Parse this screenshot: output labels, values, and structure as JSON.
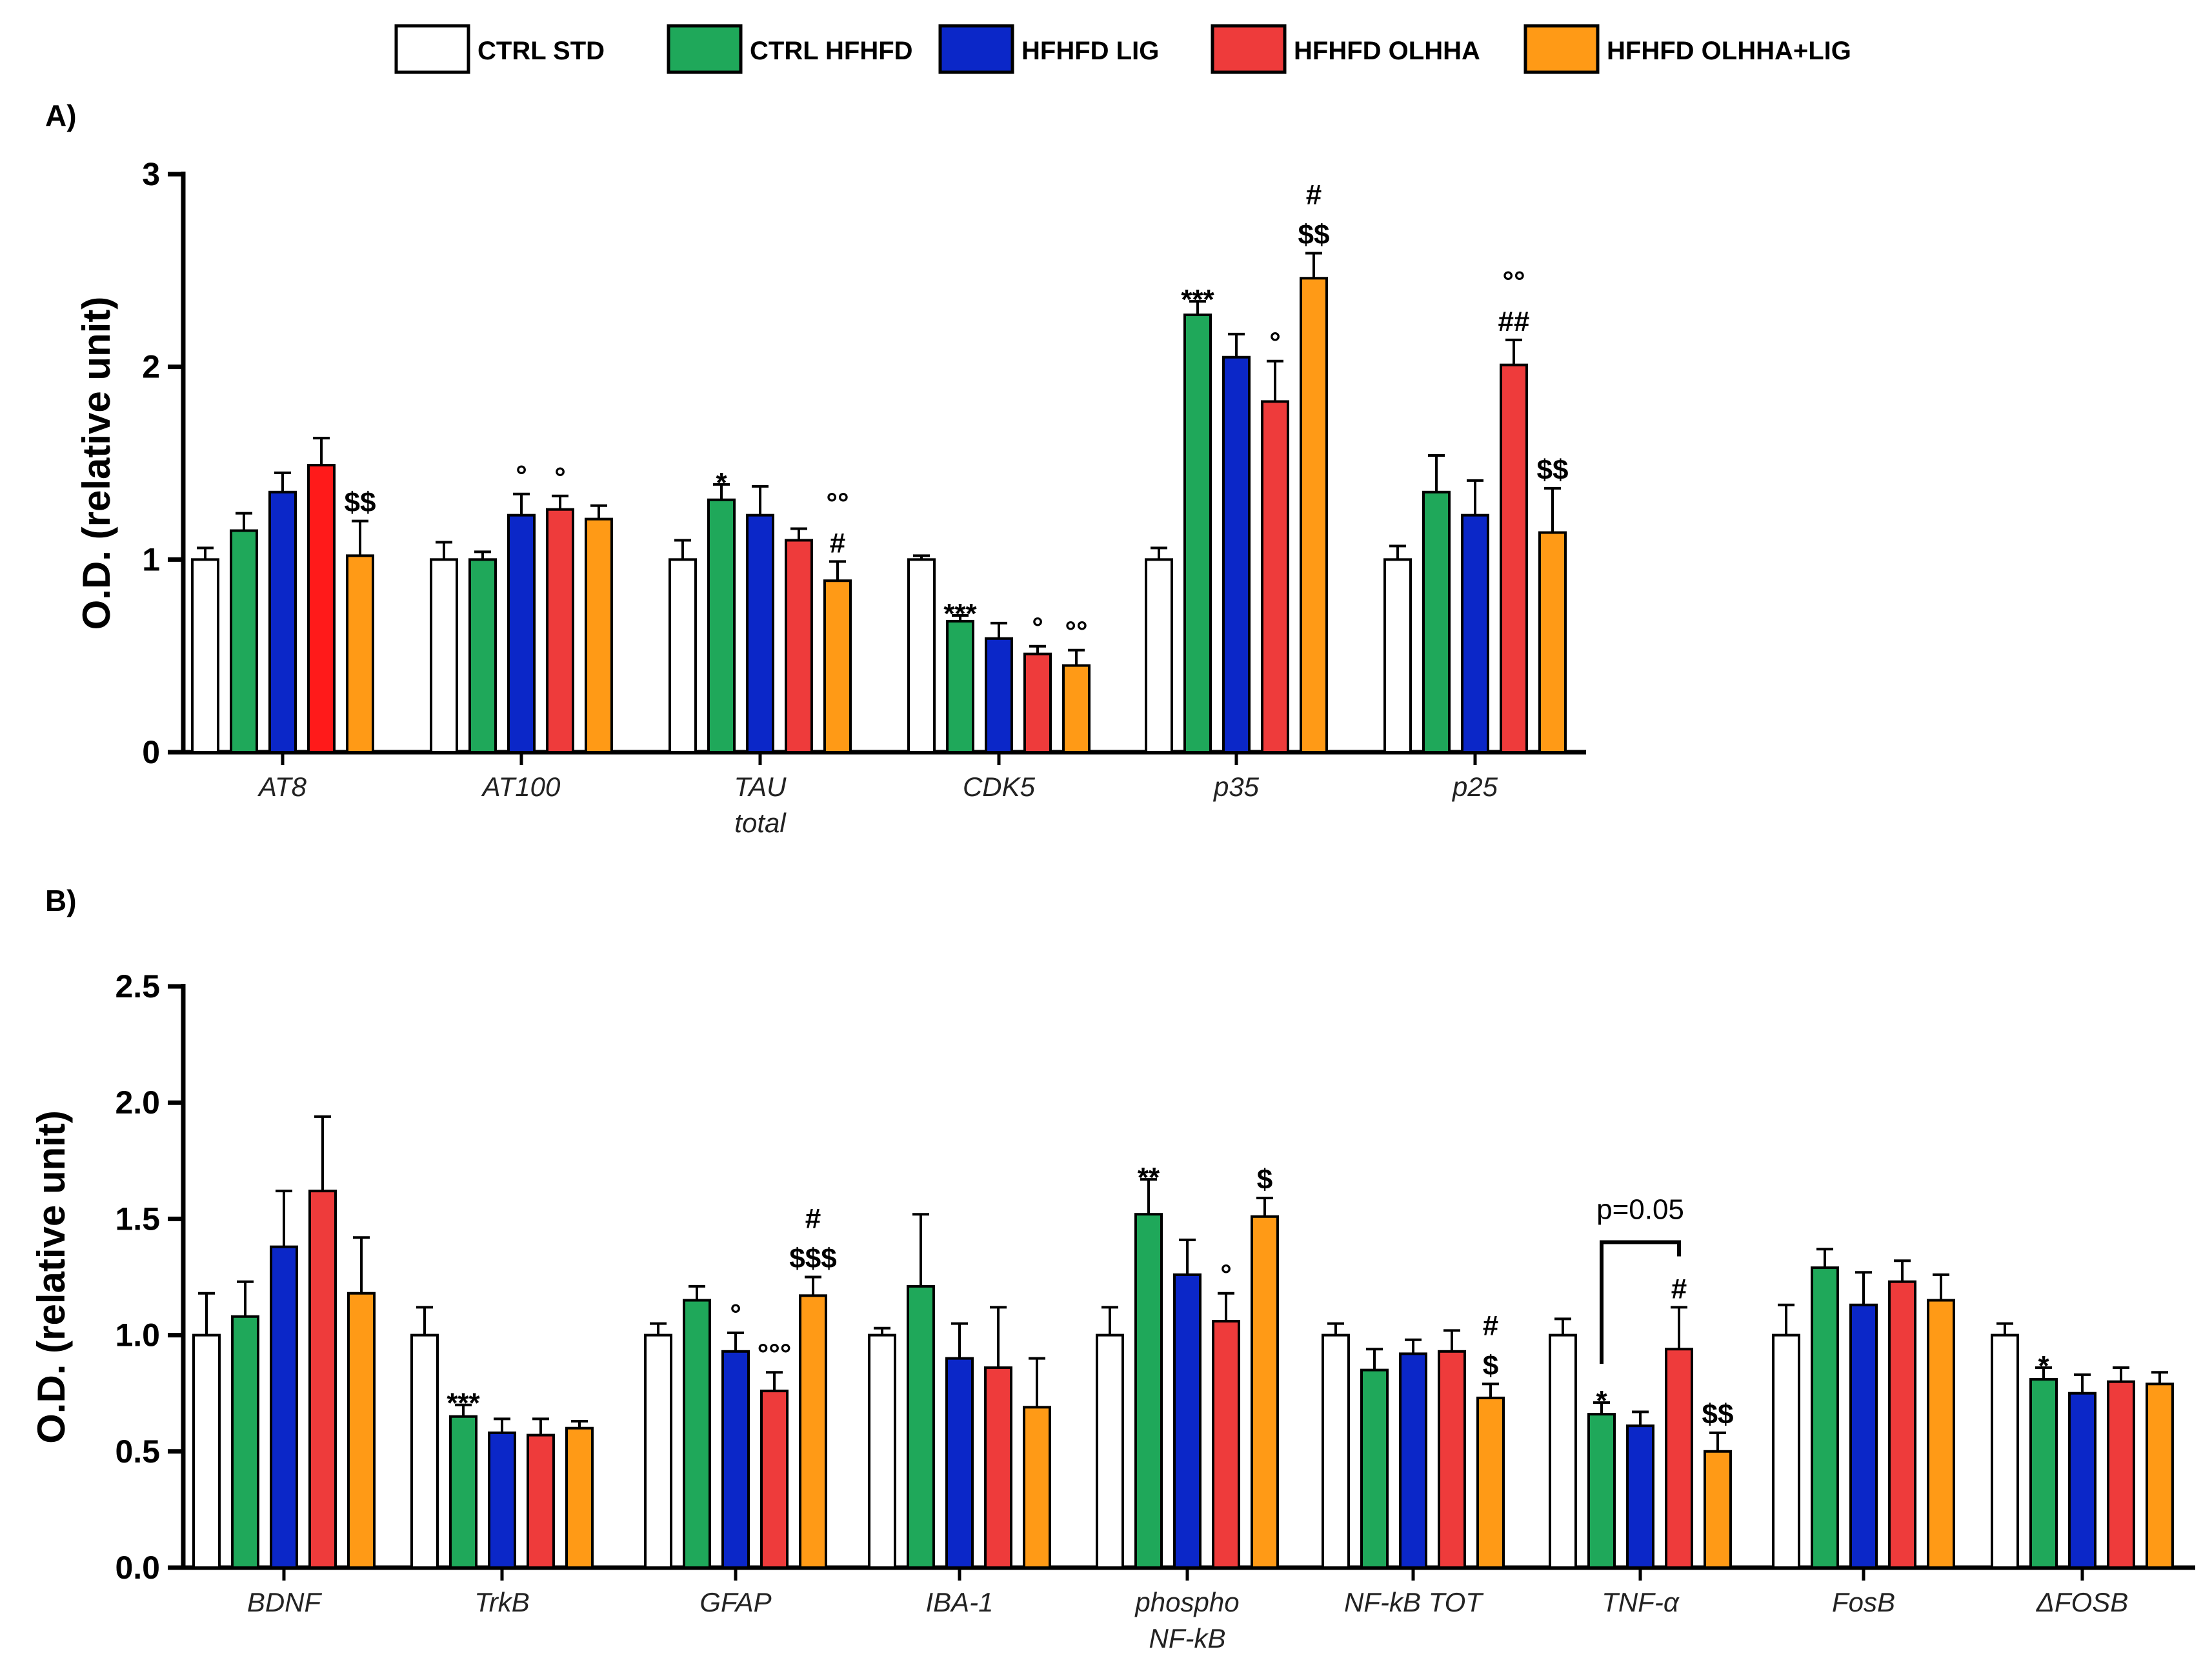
{
  "colors": {
    "CTRL STD": "#ffffff",
    "CTRL HFHFD": "#1fa85a",
    "HFHFD LIG": "#0b27c8",
    "HFHFD OLHHA": "#ee3b3b",
    "HFHFD OLHHA+LIG": "#ff9a16",
    "AT8_OLHHA": "#ff1a1a",
    "stroke": "#000000"
  },
  "legend": [
    "CTRL STD",
    "CTRL HFHFD",
    "HFHFD LIG",
    "HFHFD OLHHA",
    "HFHFD OLHHA+LIG"
  ],
  "chart_data": [
    {
      "type": "bar",
      "panel_label": "A)",
      "ylabel": "O.D. (relative unit)",
      "ylim": [
        0,
        3
      ],
      "yticks": [
        "0",
        "1",
        "2",
        "3"
      ],
      "ytick_values": [
        0,
        1,
        2,
        3
      ],
      "categories": [
        "AT8",
        "AT100",
        "TAU\ntotal",
        "CDK5",
        "p35",
        "p25"
      ],
      "series": [
        {
          "name": "CTRL STD",
          "values": [
            1.0,
            1.0,
            1.0,
            1.0,
            1.0,
            1.0
          ],
          "errors": [
            0.06,
            0.09,
            0.1,
            0.02,
            0.06,
            0.07
          ]
        },
        {
          "name": "CTRL HFHFD",
          "values": [
            1.15,
            1.0,
            1.31,
            0.68,
            2.27,
            1.35
          ],
          "errors": [
            0.09,
            0.04,
            0.08,
            0.03,
            0.07,
            0.19
          ]
        },
        {
          "name": "HFHFD LIG",
          "values": [
            1.35,
            1.23,
            1.23,
            0.59,
            2.05,
            1.23
          ],
          "errors": [
            0.1,
            0.11,
            0.15,
            0.08,
            0.12,
            0.18
          ]
        },
        {
          "name": "HFHFD OLHHA",
          "values": [
            1.49,
            1.26,
            1.1,
            0.51,
            1.82,
            2.01
          ],
          "errors": [
            0.14,
            0.07,
            0.06,
            0.04,
            0.21,
            0.13
          ]
        },
        {
          "name": "HFHFD OLHHA+LIG",
          "values": [
            1.02,
            1.21,
            0.89,
            0.45,
            2.46,
            1.14
          ],
          "errors": [
            0.18,
            0.07,
            0.1,
            0.08,
            0.13,
            0.23
          ]
        }
      ],
      "annotations": [
        {
          "cat": 0,
          "series": 4,
          "text": "$$"
        },
        {
          "cat": 1,
          "series": 2,
          "text": "°"
        },
        {
          "cat": 1,
          "series": 3,
          "text": "°"
        },
        {
          "cat": 2,
          "series": 1,
          "text": "*"
        },
        {
          "cat": 2,
          "series": 4,
          "text": "#"
        },
        {
          "cat": 2,
          "series": 4,
          "text": "°°"
        },
        {
          "cat": 3,
          "series": 1,
          "text": "***"
        },
        {
          "cat": 3,
          "series": 3,
          "text": "°"
        },
        {
          "cat": 3,
          "series": 4,
          "text": "°°"
        },
        {
          "cat": 4,
          "series": 1,
          "text": "***"
        },
        {
          "cat": 4,
          "series": 3,
          "text": "°"
        },
        {
          "cat": 4,
          "series": 4,
          "text": "$$"
        },
        {
          "cat": 4,
          "series": 4,
          "text": "#"
        },
        {
          "cat": 5,
          "series": 3,
          "text": "##"
        },
        {
          "cat": 5,
          "series": 3,
          "text": "°°"
        },
        {
          "cat": 5,
          "series": 4,
          "text": "$$"
        }
      ]
    },
    {
      "type": "bar",
      "panel_label": "B)",
      "ylabel": "O.D. (relative unit)",
      "ylim": [
        0,
        2.5
      ],
      "yticks": [
        "0.0",
        "0.5",
        "1.0",
        "1.5",
        "2.0",
        "2.5"
      ],
      "ytick_values": [
        0,
        0.5,
        1.0,
        1.5,
        2.0,
        2.5
      ],
      "categories": [
        "BDNF",
        "TrkB",
        "GFAP",
        "IBA-1",
        "phospho\nNF-kB",
        "NF-kB TOT",
        "TNF-α",
        "FosB",
        "ΔFOSB"
      ],
      "series": [
        {
          "name": "CTRL STD",
          "values": [
            1.0,
            1.0,
            1.0,
            1.0,
            1.0,
            1.0,
            1.0,
            1.0,
            1.0
          ],
          "errors": [
            0.18,
            0.12,
            0.05,
            0.03,
            0.12,
            0.05,
            0.07,
            0.13,
            0.05
          ]
        },
        {
          "name": "CTRL HFHFD",
          "values": [
            1.08,
            0.65,
            1.15,
            1.21,
            1.52,
            0.85,
            0.66,
            1.29,
            0.81
          ],
          "errors": [
            0.15,
            0.05,
            0.06,
            0.31,
            0.15,
            0.09,
            0.05,
            0.08,
            0.05
          ]
        },
        {
          "name": "HFHFD LIG",
          "values": [
            1.38,
            0.58,
            0.93,
            0.9,
            1.26,
            0.92,
            0.61,
            1.13,
            0.75
          ],
          "errors": [
            0.24,
            0.06,
            0.08,
            0.15,
            0.15,
            0.06,
            0.06,
            0.14,
            0.08
          ]
        },
        {
          "name": "HFHFD OLHHA",
          "values": [
            1.62,
            0.57,
            0.76,
            0.86,
            1.06,
            0.93,
            0.94,
            1.23,
            0.8
          ],
          "errors": [
            0.32,
            0.07,
            0.08,
            0.26,
            0.12,
            0.09,
            0.18,
            0.09,
            0.06
          ]
        },
        {
          "name": "HFHFD OLHHA+LIG",
          "values": [
            1.18,
            0.6,
            1.17,
            0.69,
            1.51,
            0.73,
            0.5,
            1.15,
            0.79
          ],
          "errors": [
            0.24,
            0.03,
            0.08,
            0.21,
            0.08,
            0.06,
            0.08,
            0.11,
            0.05
          ]
        }
      ],
      "annotations": [
        {
          "cat": 1,
          "series": 1,
          "text": "***"
        },
        {
          "cat": 2,
          "series": 2,
          "text": "°"
        },
        {
          "cat": 2,
          "series": 3,
          "text": "°°°"
        },
        {
          "cat": 2,
          "series": 4,
          "text": "$$$"
        },
        {
          "cat": 2,
          "series": 4,
          "text": "#"
        },
        {
          "cat": 4,
          "series": 1,
          "text": "**"
        },
        {
          "cat": 4,
          "series": 3,
          "text": "°"
        },
        {
          "cat": 4,
          "series": 4,
          "text": "$"
        },
        {
          "cat": 5,
          "series": 4,
          "text": "$"
        },
        {
          "cat": 5,
          "series": 4,
          "text": "#"
        },
        {
          "cat": 6,
          "series": 1,
          "text": "*"
        },
        {
          "cat": 6,
          "series": 3,
          "text": "#"
        },
        {
          "cat": 6,
          "series": 4,
          "text": "$$"
        },
        {
          "cat": 8,
          "series": 1,
          "text": "*"
        }
      ],
      "brackets": [
        {
          "cat": 6,
          "from_series": 1,
          "to_series": 3,
          "text": "p=0.05"
        }
      ]
    }
  ]
}
